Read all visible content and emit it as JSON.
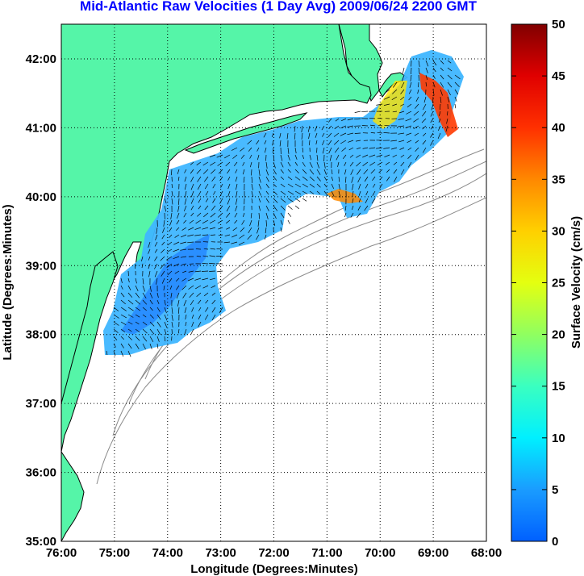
{
  "title": "Mid-Atlantic Raw Velocities (1 Day Avg) 2009/06/24 2200 GMT",
  "x_axis": {
    "label": "Longitude (Degrees:Minutes)",
    "ticks": [
      "76:00",
      "75:00",
      "74:00",
      "73:00",
      "72:00",
      "71:00",
      "70:00",
      "69:00",
      "68:00"
    ]
  },
  "y_axis": {
    "label": "Latitude (Degrees:Minutes)",
    "ticks": [
      "42:00",
      "41:00",
      "40:00",
      "39:00",
      "38:00",
      "37:00",
      "36:00",
      "35:00"
    ]
  },
  "colorbar": {
    "label": "Surface Velocity (cm/s)",
    "ticks": [
      "50",
      "45",
      "40",
      "35",
      "30",
      "25",
      "20",
      "15",
      "10",
      "5",
      "0"
    ],
    "range": [
      0,
      50
    ]
  },
  "colors": {
    "land": "#55f5a8",
    "title": "#0000ff",
    "isobath": "#8a8a8a"
  }
}
